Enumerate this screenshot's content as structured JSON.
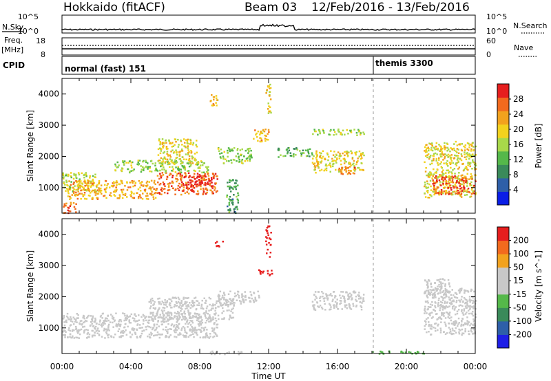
{
  "header": {
    "station": "Hokkaido (fitACF)",
    "beam": "Beam 03",
    "date_range": "12/Feb/2016 - 13/Feb/2016"
  },
  "panels": {
    "nsky": {
      "label": "N.Sky",
      "right_label": "N.Search",
      "left_ticks": [
        "10^5",
        "10^0"
      ],
      "right_ticks": [
        "10^5",
        "10^0"
      ]
    },
    "freq": {
      "label_1": "Freq.",
      "label_2": "[MHz]",
      "left_ticks": [
        "18",
        "8"
      ],
      "right_ticks": [
        "60",
        "0"
      ],
      "right_label": "Nave"
    },
    "cpid": {
      "label": "CPID",
      "modes": [
        {
          "name": "normal (fast) 151",
          "start_hour": 0
        },
        {
          "name": "themis 3300",
          "start_hour": 18
        }
      ]
    }
  },
  "colors": {
    "power": [
      "#0a1ee6",
      "#2e5fa8",
      "#3a8a5a",
      "#55b84a",
      "#a8d84a",
      "#f2d21e",
      "#f2a21e",
      "#f26a1e",
      "#e61e1e"
    ],
    "velocity": [
      "#1e1ee6",
      "#2e5fa8",
      "#3a8a5a",
      "#55b84a",
      "#c8c8c8",
      "#c8c8c8",
      "#f2a21e",
      "#f26a1e",
      "#e61e1e"
    ]
  },
  "chart_data": [
    {
      "type": "heatmap",
      "name_ref": "power",
      "ylabel": "Slant Range [km]",
      "xlabel": "",
      "x_ticks": [
        "00:00",
        "04:00",
        "08:00",
        "12:00",
        "16:00",
        "20:00",
        "00:00"
      ],
      "xlim_hours": [
        0,
        24
      ],
      "ylim": [
        180,
        4500
      ],
      "y_ticks": [
        1000,
        2000,
        3000,
        4000
      ],
      "colorbar": {
        "label": "Power [dB]",
        "ticks": [
          "4",
          "8",
          "12",
          "16",
          "20",
          "24",
          "28"
        ],
        "range": [
          0,
          30
        ]
      },
      "regions": [
        {
          "t0": 0.0,
          "t1": 2.0,
          "r0": 900,
          "r1": 1500,
          "value": 16
        },
        {
          "t0": 0.3,
          "t1": 5.5,
          "r0": 650,
          "r1": 1250,
          "value": 21
        },
        {
          "t0": 5.5,
          "t1": 9.0,
          "r0": 800,
          "r1": 1500,
          "value": 25
        },
        {
          "t0": 7.0,
          "t1": 8.8,
          "r0": 1000,
          "r1": 1400,
          "value": 28
        },
        {
          "t0": 0.0,
          "t1": 0.8,
          "r0": 200,
          "r1": 550,
          "value": 24
        },
        {
          "t0": 3.0,
          "t1": 8.5,
          "r0": 1500,
          "r1": 1900,
          "value": 14
        },
        {
          "t0": 5.5,
          "t1": 7.8,
          "r0": 1800,
          "r1": 2600,
          "value": 18
        },
        {
          "t0": 9.0,
          "t1": 11.0,
          "r0": 1800,
          "r1": 2300,
          "value": 14
        },
        {
          "t0": 11.0,
          "t1": 12.0,
          "r0": 2500,
          "r1": 2900,
          "value": 20
        },
        {
          "t0": 12.5,
          "t1": 14.5,
          "r0": 2000,
          "r1": 2300,
          "value": 12
        },
        {
          "t0": 14.5,
          "t1": 17.5,
          "r0": 1500,
          "r1": 2200,
          "value": 18
        },
        {
          "t0": 16.0,
          "t1": 17.0,
          "r0": 1400,
          "r1": 1700,
          "value": 24
        },
        {
          "t0": 14.5,
          "t1": 17.5,
          "r0": 2700,
          "r1": 2900,
          "value": 14
        },
        {
          "t0": 9.5,
          "t1": 10.2,
          "r0": 200,
          "r1": 1300,
          "value": 10
        },
        {
          "t0": 21.0,
          "t1": 24.0,
          "r0": 700,
          "r1": 2500,
          "value": 18
        },
        {
          "t0": 21.5,
          "t1": 24.0,
          "r0": 800,
          "r1": 1400,
          "value": 26
        },
        {
          "t0": 11.8,
          "t1": 12.1,
          "r0": 3400,
          "r1": 4400,
          "value": 18
        },
        {
          "t0": 8.5,
          "t1": 9.0,
          "r0": 3600,
          "r1": 4000,
          "value": 20
        }
      ]
    },
    {
      "type": "heatmap",
      "name_ref": "velocity",
      "ylabel": "Slant Range [km]",
      "xlabel": "Time UT",
      "x_ticks": [
        "00:00",
        "04:00",
        "08:00",
        "12:00",
        "16:00",
        "20:00",
        "00:00"
      ],
      "xlim_hours": [
        0,
        24
      ],
      "ylim": [
        180,
        4500
      ],
      "y_ticks": [
        1000,
        2000,
        3000,
        4000
      ],
      "colorbar": {
        "label": "Velocity [m s^-1]",
        "ticks": [
          "200",
          "100",
          "50",
          "15",
          "-15",
          "-50",
          "-100",
          "-200"
        ],
        "range": [
          -250,
          250
        ]
      },
      "regions": [
        {
          "t0": 0.0,
          "t1": 9.0,
          "r0": 700,
          "r1": 1500,
          "value": 0
        },
        {
          "t0": 5.0,
          "t1": 10.0,
          "r0": 1300,
          "r1": 2000,
          "value": 0
        },
        {
          "t0": 9.0,
          "t1": 11.5,
          "r0": 1800,
          "r1": 2200,
          "value": 0
        },
        {
          "t0": 8.8,
          "t1": 9.3,
          "r0": 3600,
          "r1": 3800,
          "value": 220
        },
        {
          "t0": 11.4,
          "t1": 12.2,
          "r0": 2700,
          "r1": 2900,
          "value": 230
        },
        {
          "t0": 11.8,
          "t1": 12.1,
          "r0": 3300,
          "r1": 4300,
          "value": 220
        },
        {
          "t0": 14.5,
          "t1": 17.5,
          "r0": 1600,
          "r1": 2200,
          "value": 0
        },
        {
          "t0": 21.0,
          "t1": 24.0,
          "r0": 800,
          "r1": 2300,
          "value": 0
        },
        {
          "t0": 21.0,
          "t1": 22.5,
          "r0": 2000,
          "r1": 2600,
          "value": 60
        },
        {
          "t0": 8.5,
          "t1": 10.5,
          "r0": 180,
          "r1": 280,
          "value": 60
        },
        {
          "t0": 18.0,
          "t1": 21.0,
          "r0": 180,
          "r1": 280,
          "value": -60
        }
      ]
    }
  ]
}
